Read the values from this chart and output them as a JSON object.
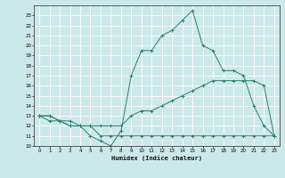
{
  "xlabel": "Humidex (Indice chaleur)",
  "bg_color": "#cce9ea",
  "grid_color": "#ffffff",
  "line_color": "#2e7d6e",
  "xlim": [
    -0.5,
    23.5
  ],
  "ylim": [
    10,
    24
  ],
  "xticks": [
    0,
    1,
    2,
    3,
    4,
    5,
    6,
    7,
    8,
    9,
    10,
    11,
    12,
    13,
    14,
    15,
    16,
    17,
    18,
    19,
    20,
    21,
    22,
    23
  ],
  "yticks": [
    10,
    11,
    12,
    13,
    14,
    15,
    16,
    17,
    18,
    19,
    20,
    21,
    22,
    23
  ],
  "line1_x": [
    0,
    1,
    2,
    3,
    4,
    5,
    6,
    7,
    8,
    9,
    10,
    11,
    12,
    13,
    14,
    15,
    16,
    17,
    18,
    19,
    20,
    21,
    22,
    23
  ],
  "line1_y": [
    13,
    13,
    12.5,
    12,
    12,
    11,
    10.5,
    10,
    11.5,
    17,
    19.5,
    19.5,
    21,
    21.5,
    22.5,
    23.5,
    20,
    19.5,
    17.5,
    17.5,
    17,
    14,
    12,
    11
  ],
  "line2_x": [
    0,
    1,
    2,
    3,
    4,
    5,
    6,
    7,
    8,
    9,
    10,
    11,
    12,
    13,
    14,
    15,
    16,
    17,
    18,
    19,
    20,
    21,
    22,
    23
  ],
  "line2_y": [
    13,
    12.5,
    12.5,
    12,
    12,
    12,
    11,
    11,
    11,
    11,
    11,
    11,
    11,
    11,
    11,
    11,
    11,
    11,
    11,
    11,
    11,
    11,
    11,
    11
  ],
  "line3_x": [
    0,
    1,
    2,
    3,
    4,
    5,
    6,
    7,
    8,
    9,
    10,
    11,
    12,
    13,
    14,
    15,
    16,
    17,
    18,
    19,
    20,
    21,
    22,
    23
  ],
  "line3_y": [
    13,
    13,
    12.5,
    12.5,
    12,
    12,
    12,
    12,
    12,
    13,
    13.5,
    13.5,
    14,
    14.5,
    15,
    15.5,
    16,
    16.5,
    16.5,
    16.5,
    16.5,
    16.5,
    16,
    11
  ]
}
